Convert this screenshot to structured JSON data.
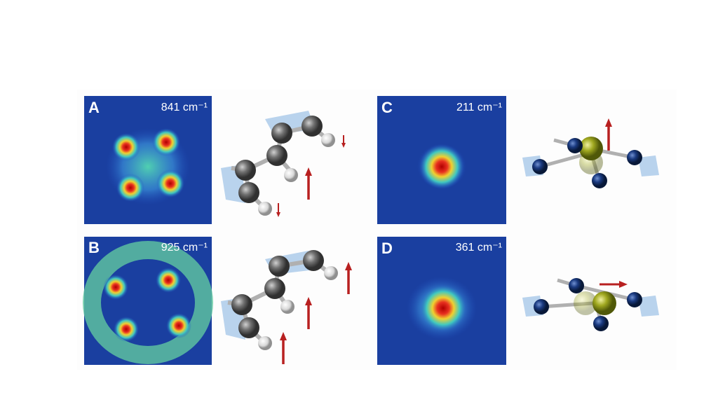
{
  "panels": [
    {
      "label": "A",
      "frequency": "841 cm⁻¹"
    },
    {
      "label": "B",
      "frequency": "925 cm⁻¹"
    },
    {
      "label": "C",
      "frequency": "211 cm⁻¹"
    },
    {
      "label": "D",
      "frequency": "361 cm⁻¹"
    }
  ]
}
